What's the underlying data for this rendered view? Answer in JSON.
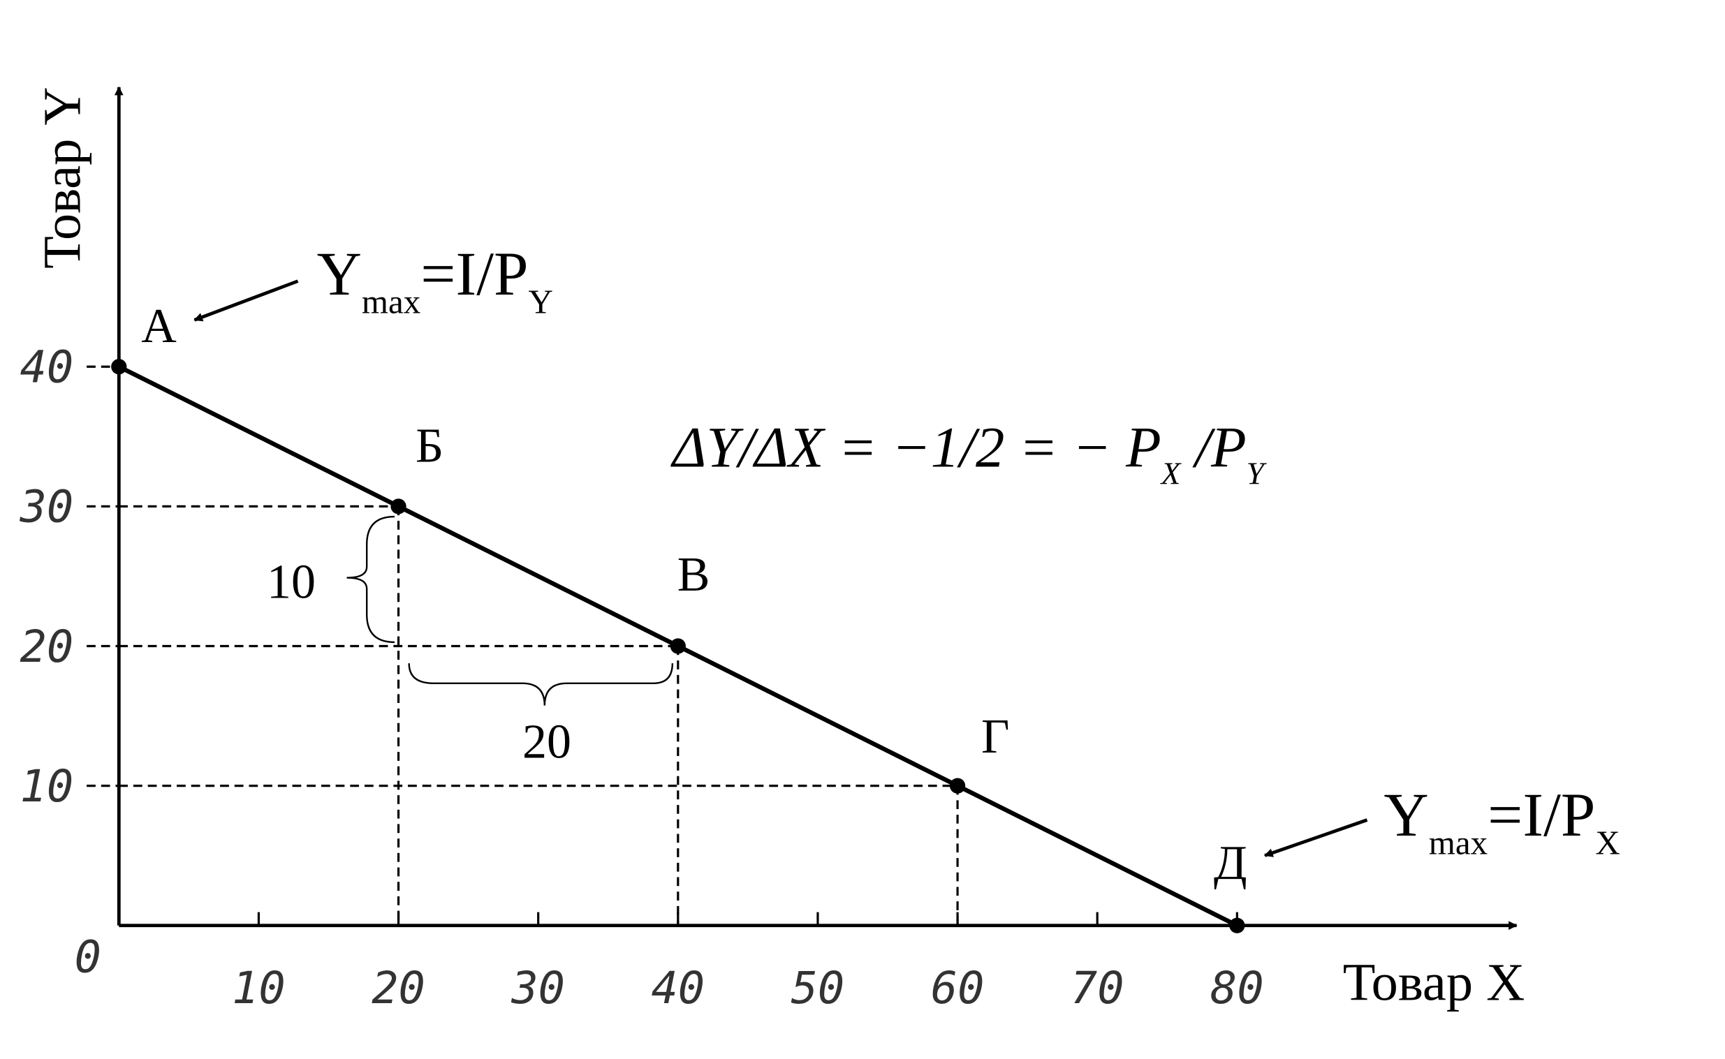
{
  "chart_data": {
    "type": "line",
    "x_label": "Товар X",
    "y_label": "Товар Y",
    "x": [
      0,
      20,
      40,
      60,
      80
    ],
    "values": [
      40,
      30,
      20,
      10,
      0
    ],
    "color": "#000000",
    "point_labels": [
      "А",
      "Б",
      "В",
      "Г",
      "Д"
    ],
    "xlim": [
      0,
      100
    ],
    "ylim": [
      0,
      60
    ],
    "xticks": [
      0,
      10,
      20,
      30,
      40,
      50,
      60,
      70,
      80
    ],
    "yticks": [
      10,
      20,
      30,
      40
    ],
    "annotation_top": [
      "Y",
      "max",
      "=I/P",
      "Y"
    ],
    "annotation_bottom": [
      "Y",
      "max",
      "=I/P",
      "X"
    ],
    "formula": [
      "ΔY/ΔX = −1/2 = − P",
      "X",
      " /P",
      "Y"
    ],
    "brace_y_label": "10",
    "brace_x_label": "20"
  }
}
